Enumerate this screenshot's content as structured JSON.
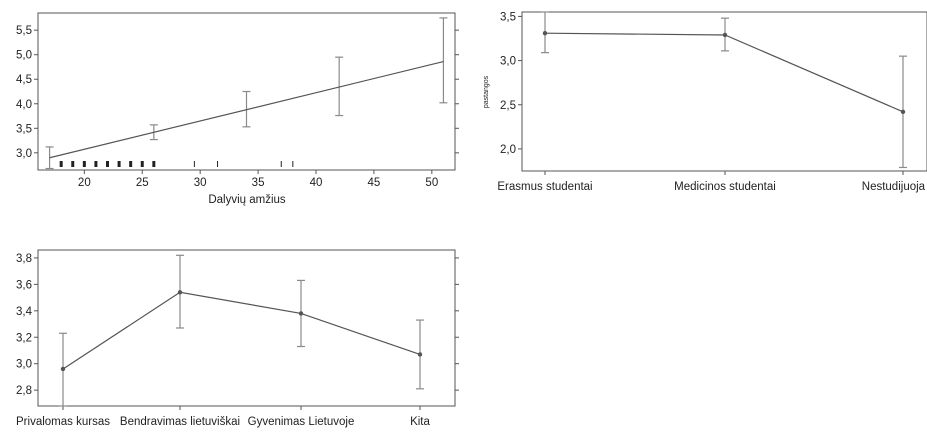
{
  "chart_data": [
    {
      "type": "line",
      "xlabel": "Dalyvių amžius",
      "ylabel": "",
      "xlim": [
        16,
        52
      ],
      "ylim": [
        2.65,
        5.85
      ],
      "x_ticks": [
        20,
        25,
        30,
        35,
        40,
        45,
        50
      ],
      "x_tick_labels": [
        "20",
        "25",
        "30",
        "35",
        "40",
        "45",
        "50"
      ],
      "y_ticks": [
        3.0,
        3.5,
        4.0,
        4.5,
        5.0,
        5.5
      ],
      "y_tick_labels": [
        "3,0",
        "3,5",
        "4,0",
        "4,5",
        "5,0",
        "5,5"
      ],
      "fit_line": {
        "x": [
          17,
          51
        ],
        "y": [
          2.9,
          4.86
        ]
      },
      "points": [
        {
          "x": 17,
          "y": 2.9,
          "low": 2.68,
          "high": 3.12
        },
        {
          "x": 26,
          "y": 3.42,
          "low": 3.27,
          "high": 3.57
        },
        {
          "x": 34,
          "y": 3.88,
          "low": 3.53,
          "high": 4.25
        },
        {
          "x": 42,
          "y": 4.36,
          "low": 3.76,
          "high": 4.95
        },
        {
          "x": 51,
          "y": 4.86,
          "low": 4.02,
          "high": 5.75
        }
      ],
      "rug": [
        18,
        19,
        20,
        21,
        22,
        23,
        24,
        25,
        26,
        29.5,
        31.5,
        37,
        38
      ]
    },
    {
      "type": "line",
      "ylabel": "pastangos",
      "xlabel": "",
      "ylim": [
        1.75,
        3.55
      ],
      "y_ticks": [
        2.0,
        2.5,
        3.0,
        3.5
      ],
      "y_tick_labels": [
        "2,0",
        "2,5",
        "3,0",
        "3,5"
      ],
      "categories": [
        "Erasmus studentai",
        "Medicinos studentai",
        "Nestudijuoja VU"
      ],
      "values": [
        3.31,
        3.29,
        2.42
      ],
      "err_low": [
        3.09,
        3.11,
        1.79
      ],
      "err_high": [
        3.55,
        3.48,
        3.05
      ]
    },
    {
      "type": "line",
      "xlabel": "",
      "ylabel": "",
      "ylim": [
        2.68,
        3.86
      ],
      "y_ticks": [
        2.8,
        3.0,
        3.2,
        3.4,
        3.6,
        3.8
      ],
      "y_tick_labels": [
        "2,8",
        "3,0",
        "3,2",
        "3,4",
        "3,6",
        "3,8"
      ],
      "categories": [
        "Privalomas kursas",
        "Bendravimas lietuviškai",
        "Gyvenimas Lietuvoje",
        "Kita"
      ],
      "values": [
        2.96,
        3.54,
        3.38,
        3.07
      ],
      "err_low": [
        2.68,
        3.27,
        3.13,
        2.81
      ],
      "err_high": [
        3.23,
        3.82,
        3.63,
        3.33
      ]
    }
  ]
}
